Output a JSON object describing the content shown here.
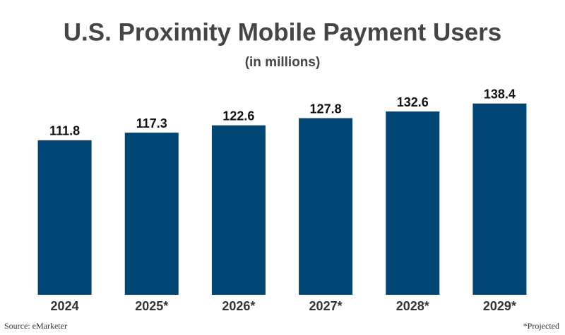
{
  "chart_data": {
    "type": "bar",
    "title": "U.S. Proximity Mobile Payment Users",
    "subtitle": "(in millions)",
    "categories": [
      "2024",
      "2025*",
      "2026*",
      "2027*",
      "2028*",
      "2029*"
    ],
    "values": [
      111.8,
      117.3,
      122.6,
      127.8,
      132.6,
      138.4
    ],
    "color": "#004675",
    "source": "Source: eMarketer",
    "footnote": "*Projected"
  }
}
